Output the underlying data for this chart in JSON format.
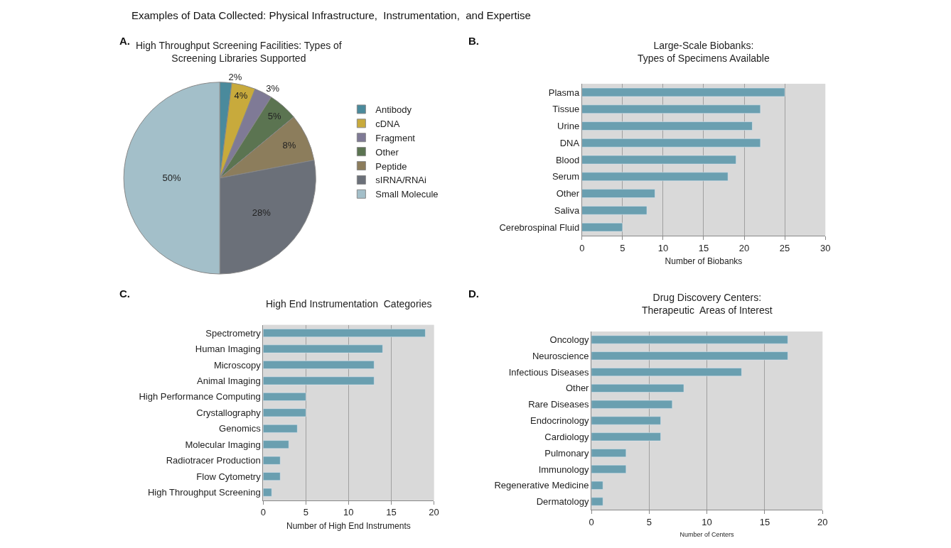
{
  "chart_data": [
    {
      "type": "pie",
      "title": "High Throughput Screening Facilities: Types of\nScreening Libraries Supported",
      "annotations": [
        "A.",
        "Examples of Data Collected: Physical Infrastructure,  Instrumentation,  and Expertise"
      ],
      "categories": [
        "Antibody",
        "cDNA",
        "Fragment",
        "Other",
        "Peptide",
        "sIRNA/RNAi",
        "Small Molecule"
      ],
      "values": [
        2,
        4,
        3,
        5,
        8,
        28,
        50
      ],
      "value_labels": [
        "2%",
        "4%",
        "3%",
        "5%",
        "8%",
        "28%",
        "50%"
      ],
      "colors": [
        "#4a8a9c",
        "#c8aa3c",
        "#7f7a96",
        "#5b7451",
        "#8c7d5c",
        "#6b7079",
        "#a3bfc9"
      ],
      "legend": "right"
    },
    {
      "type": "bar",
      "orientation": "horizontal",
      "title": "Large-Scale Biobanks:\nTypes of Specimens Available",
      "annotations": [
        "B."
      ],
      "xlabel": "Number of Biobanks",
      "categories": [
        "Plasma",
        "Tissue",
        "Urine",
        "DNA",
        "Blood",
        "Serum",
        "Other",
        "Saliva",
        "Cerebrospinal Fluid"
      ],
      "values": [
        25,
        22,
        21,
        22,
        19,
        18,
        9,
        8,
        5
      ],
      "color": "#6a9fb0",
      "xlim": [
        0,
        30
      ],
      "xticks": [
        0,
        5,
        10,
        15,
        20,
        25,
        30
      ],
      "grid": "x"
    },
    {
      "type": "bar",
      "orientation": "horizontal",
      "title": "High End Instrumentation  Categories",
      "annotations": [
        "C."
      ],
      "xlabel": "Number of High End Instruments",
      "categories": [
        "Spectrometry",
        "Human Imaging",
        "Microscopy",
        "Animal Imaging",
        "High Performance Computing",
        "Crystallography",
        "Genomics",
        "Molecular Imaging",
        "Radiotracer Production",
        "Flow Cytometry",
        "High Throughput Screening"
      ],
      "values": [
        19,
        14,
        13,
        13,
        5,
        5,
        4,
        3,
        2,
        2,
        1
      ],
      "color": "#6a9fb0",
      "xlim": [
        0,
        20
      ],
      "xticks": [
        0,
        5,
        10,
        15,
        20
      ],
      "grid": "x"
    },
    {
      "type": "bar",
      "orientation": "horizontal",
      "title": "Drug Discovery Centers:\nTherapeutic  Areas of Interest",
      "annotations": [
        "D."
      ],
      "xlabel": "Number of Centers",
      "categories": [
        "Oncology",
        "Neuroscience",
        "Infectious Diseases",
        "Other",
        "Rare Diseases",
        "Endocrinology",
        "Cardiology",
        "Pulmonary",
        "Immunology",
        "Regenerative Medicine",
        "Dermatology"
      ],
      "values": [
        17,
        17,
        13,
        8,
        7,
        6,
        6,
        3,
        3,
        1,
        1
      ],
      "color": "#6a9fb0",
      "xlim": [
        0,
        20
      ],
      "xticks": [
        0,
        5,
        10,
        15,
        20
      ],
      "grid": "x"
    }
  ]
}
